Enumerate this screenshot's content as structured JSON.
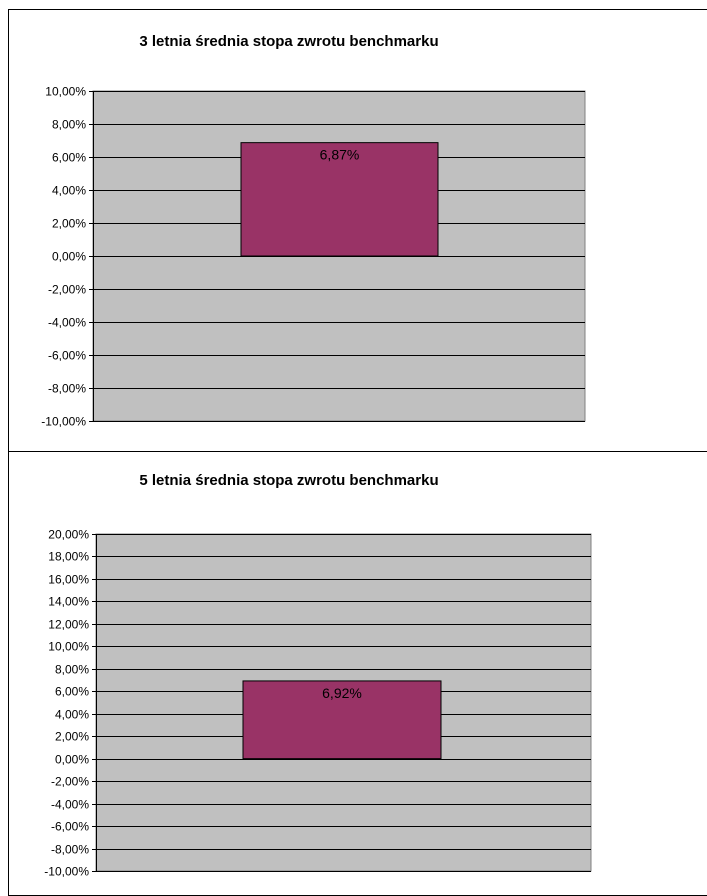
{
  "chart_data": [
    {
      "type": "bar",
      "title": "3 letnia średnia stopa zwrotu benchmarku",
      "categories": [
        ""
      ],
      "values": [
        6.87
      ],
      "data_labels": [
        "6,87%"
      ],
      "ylim": [
        -10,
        10
      ],
      "ytick_step": 2,
      "yticks": [
        "10,00%",
        "8,00%",
        "6,00%",
        "4,00%",
        "2,00%",
        "0,00%",
        "-2,00%",
        "-4,00%",
        "-6,00%",
        "-8,00%",
        "-10,00%"
      ],
      "grid": true,
      "legend": "none"
    },
    {
      "type": "bar",
      "title": "5 letnia średnia stopa zwrotu benchmarku",
      "categories": [
        ""
      ],
      "values": [
        6.92
      ],
      "data_labels": [
        "6,92%"
      ],
      "ylim": [
        -10,
        20
      ],
      "ytick_step": 2,
      "yticks": [
        "20,00%",
        "18,00%",
        "16,00%",
        "14,00%",
        "12,00%",
        "10,00%",
        "8,00%",
        "6,00%",
        "4,00%",
        "2,00%",
        "0,00%",
        "-2,00%",
        "-4,00%",
        "-6,00%",
        "-8,00%",
        "-10,00%"
      ],
      "grid": true,
      "legend": "none"
    }
  ],
  "colors": {
    "bar_fill": "#993366",
    "plot_background": "#c0c0c0",
    "gridline": "#000000"
  }
}
